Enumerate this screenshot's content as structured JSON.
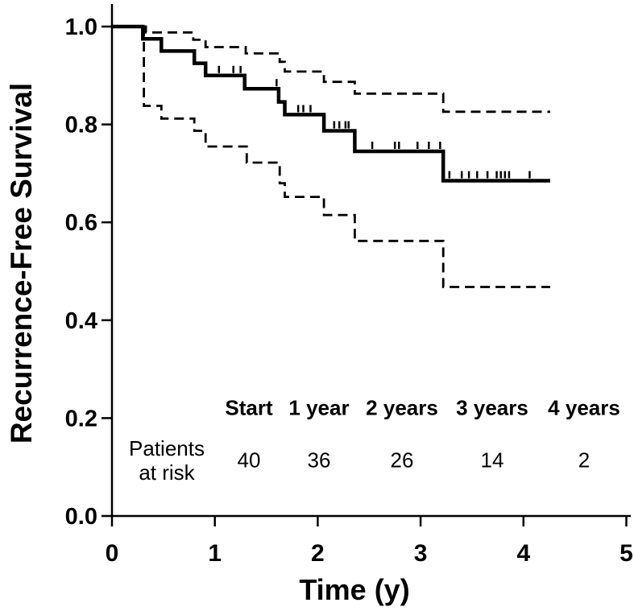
{
  "colors": {
    "line": "#000000",
    "background": "#ffffff"
  },
  "chart_data": {
    "type": "line",
    "subtype": "kaplan-meier-step-function",
    "title": "",
    "xlabel": "Time (y)",
    "ylabel": "Recurrence-Free Survival",
    "xlim": [
      0,
      5
    ],
    "ylim": [
      0.0,
      1.0
    ],
    "x_ticks": [
      0,
      1,
      2,
      3,
      4,
      5
    ],
    "x_tick_labels": [
      "0",
      "1",
      "2",
      "3",
      "4",
      "5"
    ],
    "y_ticks": [
      1.0,
      0.8,
      0.6,
      0.4,
      0.2,
      0.0
    ],
    "y_tick_labels": [
      "1.0",
      "0.8",
      "0.6",
      "0.4",
      "0.2",
      "0.0"
    ],
    "grid": false,
    "legend": "none",
    "series": [
      {
        "name": "recurrence-free-survival-estimate",
        "style": "solid",
        "start_value": 1.0,
        "end_time": 4.26,
        "steps": [
          [
            0.3,
            0.975
          ],
          [
            0.48,
            0.95
          ],
          [
            0.8,
            0.925
          ],
          [
            0.91,
            0.9
          ],
          [
            1.29,
            0.873
          ],
          [
            1.62,
            0.846
          ],
          [
            1.68,
            0.82
          ],
          [
            2.06,
            0.787
          ],
          [
            2.36,
            0.745
          ],
          [
            3.22,
            0.685
          ]
        ]
      },
      {
        "name": "upper-95ci",
        "style": "dashed",
        "start_value": 1.0,
        "start_time": 0.3,
        "end_time": 4.26,
        "steps": [
          [
            0.33,
            0.988
          ],
          [
            0.79,
            0.973
          ],
          [
            0.91,
            0.958
          ],
          [
            1.3,
            0.945
          ],
          [
            1.63,
            0.928
          ],
          [
            1.68,
            0.908
          ],
          [
            2.06,
            0.887
          ],
          [
            2.36,
            0.863
          ],
          [
            3.22,
            0.826
          ]
        ]
      },
      {
        "name": "lower-95ci",
        "style": "dashed",
        "start_value": 1.0,
        "start_time": 0.31,
        "end_time": 4.26,
        "steps": [
          [
            0.31,
            0.838
          ],
          [
            0.48,
            0.812
          ],
          [
            0.8,
            0.787
          ],
          [
            0.91,
            0.755
          ],
          [
            1.31,
            0.722
          ],
          [
            1.63,
            0.68
          ],
          [
            1.68,
            0.652
          ],
          [
            2.06,
            0.615
          ],
          [
            2.36,
            0.562
          ],
          [
            3.22,
            0.468
          ]
        ]
      }
    ],
    "censor_marks": [
      [
        1.04,
        0.9
      ],
      [
        1.18,
        0.9
      ],
      [
        1.25,
        0.9
      ],
      [
        1.6,
        0.873
      ],
      [
        1.81,
        0.82
      ],
      [
        1.86,
        0.82
      ],
      [
        1.93,
        0.82
      ],
      [
        2.16,
        0.787
      ],
      [
        2.21,
        0.787
      ],
      [
        2.27,
        0.787
      ],
      [
        2.3,
        0.787
      ],
      [
        2.53,
        0.745
      ],
      [
        2.75,
        0.745
      ],
      [
        2.79,
        0.745
      ],
      [
        2.97,
        0.745
      ],
      [
        3.08,
        0.745
      ],
      [
        3.19,
        0.745
      ],
      [
        3.28,
        0.685
      ],
      [
        3.4,
        0.685
      ],
      [
        3.47,
        0.685
      ],
      [
        3.55,
        0.685
      ],
      [
        3.65,
        0.685
      ],
      [
        3.74,
        0.685
      ],
      [
        3.78,
        0.685
      ],
      [
        3.82,
        0.685
      ],
      [
        3.86,
        0.685
      ],
      [
        4.06,
        0.685
      ]
    ],
    "risk_table": {
      "row_label_lines": [
        "Patients",
        "at risk"
      ],
      "columns": [
        {
          "header": "Start",
          "value": "40"
        },
        {
          "header": "1 year",
          "value": "36"
        },
        {
          "header": "2 years",
          "value": "26"
        },
        {
          "header": "3 years",
          "value": "14"
        },
        {
          "header": "4 years",
          "value": "2"
        }
      ]
    }
  }
}
